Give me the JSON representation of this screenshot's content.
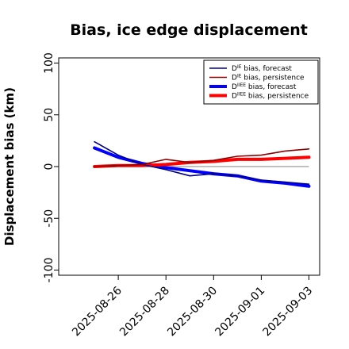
{
  "chart_data": {
    "type": "line",
    "title": "Bias, ice edge displacement",
    "ylabel": "Displacement bias (km)",
    "xlabel": "",
    "ylim": [
      -105,
      105
    ],
    "yticks": [
      -100,
      -50,
      0,
      50,
      100
    ],
    "x": [
      "2025-08-25",
      "2025-08-26",
      "2025-08-27",
      "2025-08-28",
      "2025-08-29",
      "2025-08-30",
      "2025-08-31",
      "2025-09-01",
      "2025-09-02",
      "2025-09-03"
    ],
    "xticks": [
      {
        "date": "2025-08-26",
        "label": "2025-08-26",
        "color": "#228b22"
      },
      {
        "date": "2025-08-28",
        "label": "2025-08-28",
        "color": "#000000"
      },
      {
        "date": "2025-08-30",
        "label": "2025-08-30",
        "color": "#000000"
      },
      {
        "date": "2025-09-01",
        "label": "2025-09-01",
        "color": "#000000"
      },
      {
        "date": "2025-09-03",
        "label": "2025-09-03",
        "color": "#000000"
      }
    ],
    "reference_line": {
      "y": 0,
      "color": "#808080"
    },
    "series": [
      {
        "key": "dIE_forecast",
        "legend_main": "D",
        "legend_sup": "IE",
        "legend_rest": " bias, forecast",
        "color": "#00008b",
        "width": 1.6,
        "values": [
          24,
          11,
          2,
          -3,
          -9,
          -7,
          -9,
          -13,
          -15,
          -17
        ]
      },
      {
        "key": "dIE_persistence",
        "legend_main": "D",
        "legend_sup": "IE",
        "legend_rest": " bias, persistence",
        "color": "#8b0000",
        "width": 1.6,
        "values": [
          0,
          1,
          2,
          7,
          4,
          6,
          10,
          11,
          15,
          17
        ]
      },
      {
        "key": "dIIEE_forecast",
        "legend_main": "D",
        "legend_sup": "IIEE",
        "legend_rest": " bias, forecast",
        "color": "#0000ff",
        "width": 4,
        "values": [
          18,
          9,
          3,
          -1,
          -4,
          -7,
          -9,
          -14,
          -16,
          -19
        ]
      },
      {
        "key": "dIIEE_persistence",
        "legend_main": "D",
        "legend_sup": "IIEE",
        "legend_rest": " bias, persistence",
        "color": "#ff0000",
        "width": 4,
        "values": [
          0,
          1,
          1,
          2,
          4,
          5,
          7,
          7,
          8,
          9
        ]
      }
    ],
    "legend_position": "top-right",
    "grid": false
  }
}
